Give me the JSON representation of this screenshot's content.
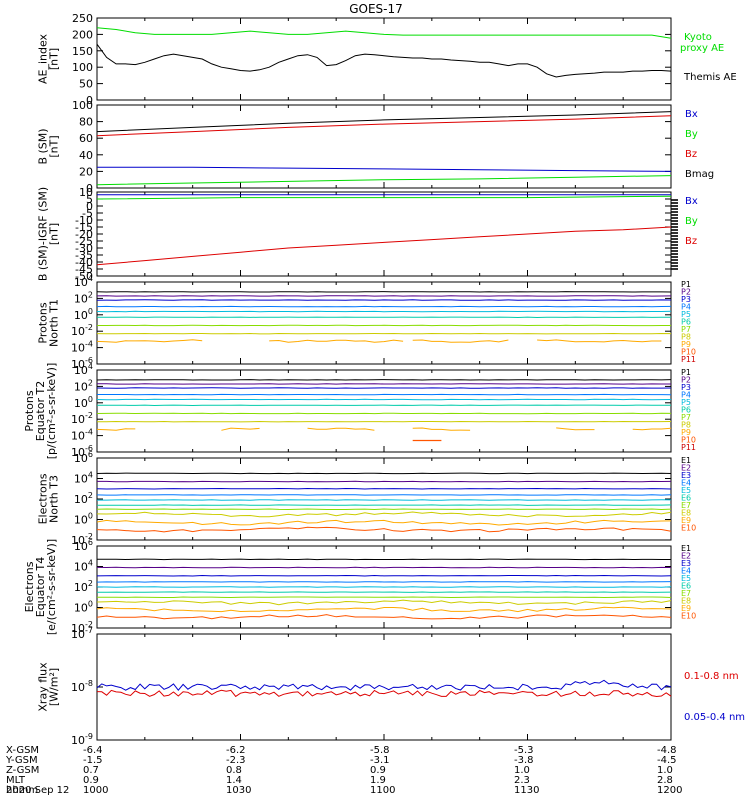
{
  "title": "GOES-17",
  "date": "2020 Sep 12",
  "colors": {
    "black": "#000000",
    "green": "#00dd00",
    "red": "#dd0000",
    "blue": "#0000cc",
    "p_series": [
      "#000000",
      "#550088",
      "#0000cc",
      "#0077ff",
      "#00bbdd",
      "#00ccaa",
      "#88dd00",
      "#cccc00",
      "#ffaa00",
      "#ff5500",
      "#cc0000"
    ],
    "e_series": [
      "#000000",
      "#550088",
      "#0000cc",
      "#0077ff",
      "#00bbdd",
      "#00ccaa",
      "#88dd00",
      "#cccc00",
      "#ffaa00",
      "#ff5500",
      "#cc0000"
    ]
  },
  "x_axis": {
    "time_ticks": [
      "1000",
      "1030",
      "1100",
      "1130",
      "1200"
    ],
    "rows": [
      {
        "label": "X-GSM",
        "values": [
          "-6.4",
          "-6.2",
          "-5.8",
          "-5.3",
          "-4.8"
        ]
      },
      {
        "label": "Y-GSM",
        "values": [
          "-1.5",
          "-2.3",
          "-3.1",
          "-3.8",
          "-4.5"
        ]
      },
      {
        "label": "Z-GSM",
        "values": [
          "0.7",
          "0.8",
          "0.9",
          "1.0",
          "1.0"
        ]
      },
      {
        "label": "MLT",
        "values": [
          "0.9",
          "1.4",
          "1.9",
          "2.3",
          "2.8"
        ]
      },
      {
        "label": "hhmm",
        "values": [
          "1000",
          "1030",
          "1100",
          "1130",
          "1200"
        ]
      }
    ]
  },
  "chart_data": [
    {
      "type": "line",
      "ylabel": "AE_index\n[nT]",
      "ylim": [
        0,
        250
      ],
      "yticks": [
        "0",
        "50",
        "100",
        "150",
        "200",
        "250"
      ],
      "scale": "linear",
      "legend": [
        {
          "text": "Kyoto\nproxy AE",
          "color": "#00dd00"
        },
        {
          "text": "Themis AE",
          "color": "#000000"
        }
      ],
      "series": [
        {
          "name": "Kyoto proxy AE",
          "color": "#00dd00",
          "x_minutes": [
            0,
            4,
            8,
            12,
            16,
            20,
            24,
            28,
            32,
            36,
            40,
            44,
            48,
            52,
            56,
            60,
            64,
            68,
            72,
            76,
            80,
            84,
            88,
            92,
            96,
            100,
            104,
            108,
            112,
            116,
            120
          ],
          "values": [
            220,
            215,
            205,
            200,
            200,
            200,
            200,
            205,
            210,
            205,
            200,
            200,
            205,
            210,
            205,
            200,
            198,
            198,
            198,
            198,
            198,
            198,
            198,
            198,
            198,
            198,
            198,
            198,
            198,
            198,
            188
          ]
        },
        {
          "name": "Themis AE",
          "color": "#000000",
          "x_minutes": [
            0,
            2,
            4,
            6,
            8,
            10,
            12,
            14,
            16,
            18,
            20,
            22,
            24,
            26,
            28,
            30,
            32,
            34,
            36,
            38,
            40,
            42,
            44,
            46,
            48,
            50,
            52,
            54,
            56,
            58,
            60,
            62,
            64,
            66,
            68,
            70,
            72,
            74,
            76,
            78,
            80,
            82,
            84,
            86,
            88,
            90,
            92,
            94,
            96,
            98,
            100,
            102,
            104,
            106,
            108,
            110,
            112,
            114,
            116,
            118,
            120
          ],
          "values": [
            170,
            130,
            110,
            110,
            108,
            115,
            125,
            135,
            140,
            135,
            130,
            125,
            110,
            100,
            95,
            90,
            88,
            92,
            100,
            115,
            125,
            135,
            138,
            130,
            105,
            108,
            120,
            135,
            140,
            138,
            135,
            132,
            130,
            128,
            128,
            125,
            125,
            122,
            120,
            118,
            115,
            115,
            110,
            105,
            110,
            110,
            100,
            80,
            70,
            75,
            78,
            80,
            82,
            85,
            85,
            85,
            88,
            88,
            90,
            90,
            88
          ]
        }
      ]
    },
    {
      "type": "line",
      "ylabel": "B (SM)\n[nT]",
      "ylim": [
        0,
        100
      ],
      "yticks": [
        "0",
        "20",
        "40",
        "60",
        "80",
        "100"
      ],
      "scale": "linear",
      "legend": [
        {
          "text": "Bx",
          "color": "#0000cc"
        },
        {
          "text": "By",
          "color": "#00dd00"
        },
        {
          "text": "Bz",
          "color": "#dd0000"
        },
        {
          "text": "Bmag",
          "color": "#000000"
        }
      ],
      "series": [
        {
          "name": "Bmag",
          "color": "#000000",
          "x_minutes": [
            0,
            20,
            40,
            60,
            80,
            100,
            120
          ],
          "values": [
            68,
            73,
            78,
            82,
            85,
            88,
            92
          ]
        },
        {
          "name": "Bz",
          "color": "#dd0000",
          "x_minutes": [
            0,
            20,
            40,
            60,
            80,
            100,
            120
          ],
          "values": [
            63,
            68,
            73,
            77,
            80,
            83,
            87
          ]
        },
        {
          "name": "Bx",
          "color": "#0000cc",
          "x_minutes": [
            0,
            20,
            40,
            60,
            80,
            100,
            120
          ],
          "values": [
            25,
            25,
            24,
            23,
            22,
            21,
            20
          ]
        },
        {
          "name": "By",
          "color": "#00dd00",
          "x_minutes": [
            0,
            20,
            40,
            60,
            80,
            100,
            120
          ],
          "values": [
            4,
            6,
            8,
            10,
            11,
            13,
            15
          ]
        }
      ]
    },
    {
      "type": "line",
      "ylabel": "B (SM)-IGRF (SM)\n[nT]",
      "ylim": [
        -50,
        10
      ],
      "yticks": [
        "-50",
        "-45",
        "-40",
        "-35",
        "-30",
        "-25",
        "-20",
        "-15",
        "-10",
        "-5",
        "0",
        "5",
        "10"
      ],
      "scale": "linear",
      "legend": [
        {
          "text": "Bx",
          "color": "#0000cc"
        },
        {
          "text": "By",
          "color": "#00dd00"
        },
        {
          "text": "Bz",
          "color": "#dd0000"
        }
      ],
      "series": [
        {
          "name": "Bx",
          "color": "#0000cc",
          "x_minutes": [
            0,
            30,
            60,
            90,
            120
          ],
          "values": [
            8,
            8,
            8,
            8,
            8
          ]
        },
        {
          "name": "By",
          "color": "#00dd00",
          "x_minutes": [
            0,
            30,
            60,
            90,
            120
          ],
          "values": [
            5,
            6,
            6,
            6,
            7
          ]
        },
        {
          "name": "Bz",
          "color": "#dd0000",
          "x_minutes": [
            0,
            10,
            20,
            30,
            40,
            50,
            60,
            70,
            80,
            90,
            100,
            110,
            120
          ],
          "values": [
            -42,
            -39,
            -36,
            -33,
            -30,
            -28,
            -26,
            -24,
            -22,
            -20,
            -18,
            -17,
            -15
          ]
        }
      ]
    },
    {
      "type": "line",
      "ylabel": "Protons\nNorth T1",
      "ylim_exp": [
        -6,
        4
      ],
      "yticks": [
        "10^-6",
        "10^-4",
        "10^-2",
        "10^0",
        "10^2",
        "10^4"
      ],
      "scale": "log",
      "legend": [
        {
          "text": "P1"
        },
        {
          "text": "P2"
        },
        {
          "text": "P3"
        },
        {
          "text": "P4"
        },
        {
          "text": "P5"
        },
        {
          "text": "P6"
        },
        {
          "text": "P7"
        },
        {
          "text": "P8"
        },
        {
          "text": "P9"
        },
        {
          "text": "P10"
        },
        {
          "text": "P11"
        }
      ],
      "series_exp": [
        2.8,
        2.3,
        1.8,
        1.0,
        0.4,
        -0.3,
        -1.3,
        -2.3,
        -3.2,
        -4.5,
        -5.5
      ],
      "series_present": [
        true,
        true,
        true,
        true,
        true,
        true,
        true,
        true,
        true,
        false,
        false
      ]
    },
    {
      "type": "line",
      "ylabel": "Protons\nEquator T2\n[p/(cm²-s-sr-keV)]",
      "ylim_exp": [
        -6,
        4
      ],
      "yticks": [
        "10^-6",
        "10^-4",
        "10^-2",
        "10^0",
        "10^2",
        "10^4"
      ],
      "scale": "log",
      "legend": [
        {
          "text": "P1"
        },
        {
          "text": "P2"
        },
        {
          "text": "P3"
        },
        {
          "text": "P4"
        },
        {
          "text": "P5"
        },
        {
          "text": "P6"
        },
        {
          "text": "P7"
        },
        {
          "text": "P8"
        },
        {
          "text": "P9"
        },
        {
          "text": "P10"
        },
        {
          "text": "P11"
        }
      ],
      "series_exp": [
        2.8,
        2.3,
        1.8,
        1.0,
        0.4,
        -0.3,
        -1.3,
        -2.3,
        -3.2,
        -4.5,
        -5.5
      ],
      "series_present": [
        true,
        true,
        true,
        true,
        true,
        true,
        true,
        true,
        true,
        true,
        false
      ]
    },
    {
      "type": "line",
      "ylabel": "Electrons\nNorth T3",
      "ylim_exp": [
        -2,
        6
      ],
      "yticks": [
        "10^-2",
        "10^0",
        "10^2",
        "10^4",
        "10^6"
      ],
      "scale": "log",
      "legend": [
        {
          "text": "E1"
        },
        {
          "text": "E2"
        },
        {
          "text": "E3"
        },
        {
          "text": "E4"
        },
        {
          "text": "E5"
        },
        {
          "text": "E6"
        },
        {
          "text": "E7"
        },
        {
          "text": "E8"
        },
        {
          "text": "E9"
        },
        {
          "text": "E10"
        }
      ],
      "series_exp": [
        4.5,
        3.7,
        3.0,
        2.4,
        1.9,
        1.4,
        1.0,
        0.5,
        -0.3,
        -1.0
      ]
    },
    {
      "type": "line",
      "ylabel": "Electrons\nEquator T4\n[e/(cm²-s-sr-keV)]",
      "ylim_exp": [
        -2,
        6
      ],
      "yticks": [
        "10^-2",
        "10^0",
        "10^2",
        "10^4",
        "10^6"
      ],
      "scale": "log",
      "legend": [
        {
          "text": "E1"
        },
        {
          "text": "E2"
        },
        {
          "text": "E3"
        },
        {
          "text": "E4"
        },
        {
          "text": "E5"
        },
        {
          "text": "E6"
        },
        {
          "text": "E7"
        },
        {
          "text": "E8"
        },
        {
          "text": "E9"
        },
        {
          "text": "E10"
        }
      ],
      "series_exp": [
        4.7,
        3.9,
        3.1,
        2.5,
        2.0,
        1.5,
        1.0,
        0.5,
        -0.2,
        -0.9
      ]
    },
    {
      "type": "line",
      "ylabel": "Xray flux\n[W/m²]",
      "ylim_exp": [
        -9,
        -7
      ],
      "yticks": [
        "10^-9",
        "10^-8",
        "10^-7"
      ],
      "scale": "log",
      "legend": [
        {
          "text": "0.1-0.8 nm",
          "color": "#dd0000"
        },
        {
          "text": "0.05-0.4 nm",
          "color": "#0000cc"
        }
      ],
      "series": [
        {
          "name": "0.05-0.4 nm",
          "color": "#0000cc",
          "exp_mean": -8.0
        },
        {
          "name": "0.1-0.8 nm",
          "color": "#dd0000",
          "exp_mean": -8.12
        }
      ]
    }
  ]
}
